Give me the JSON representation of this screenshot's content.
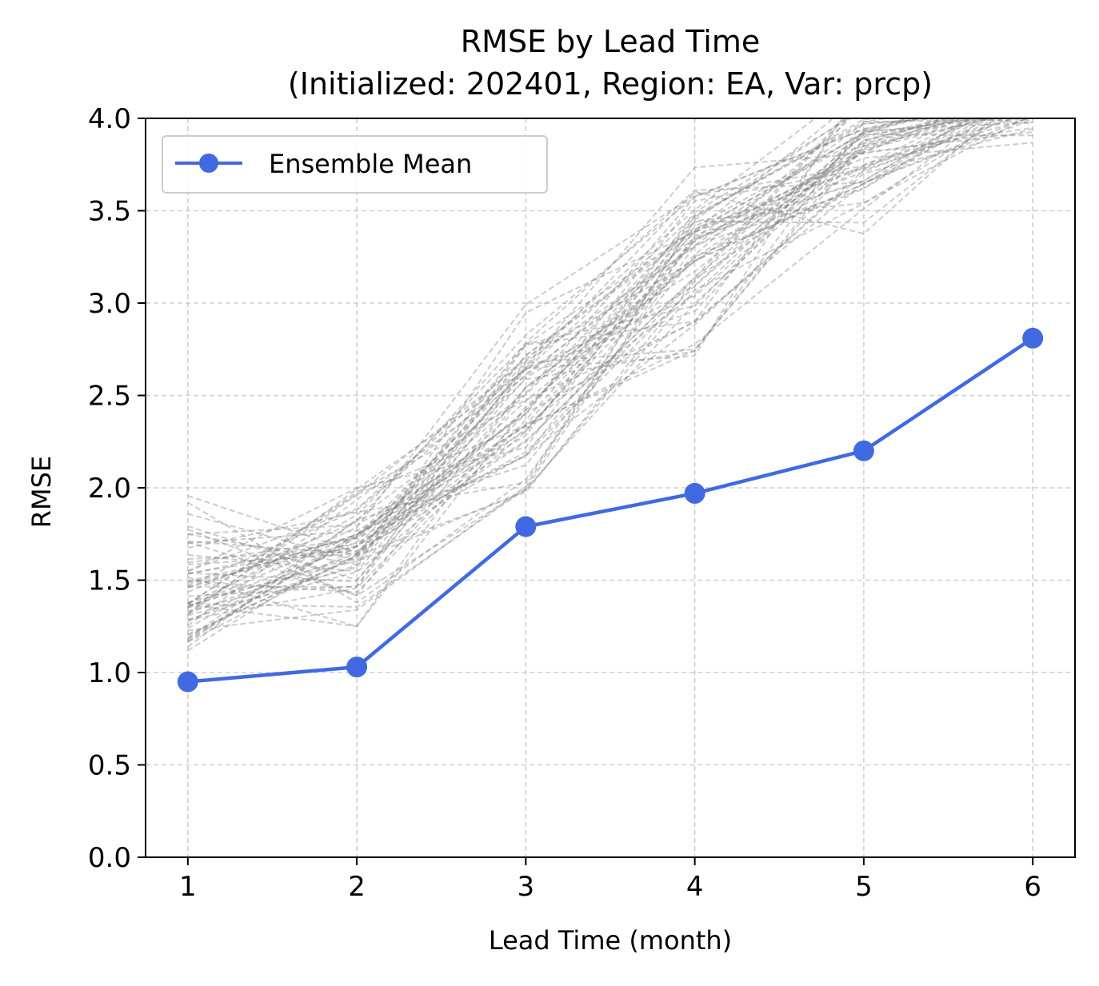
{
  "chart_data": {
    "type": "line",
    "title": "RMSE by Lead Time",
    "subtitle": "(Initialized: 202401, Region: EA, Var: prcp)",
    "xlabel": "Lead Time (month)",
    "ylabel": "RMSE",
    "x": [
      1,
      2,
      3,
      4,
      5,
      6
    ],
    "x_ticks": [
      "1",
      "2",
      "3",
      "4",
      "5",
      "6"
    ],
    "y_ticks": [
      "0.0",
      "0.5",
      "1.0",
      "1.5",
      "2.0",
      "2.5",
      "3.0",
      "3.5",
      "4.0"
    ],
    "xlim": [
      0.75,
      6.25
    ],
    "ylim": [
      0,
      4.0
    ],
    "grid": true,
    "legend_position": "upper-left",
    "series": [
      {
        "name": "Ensemble Mean",
        "color": "#4169e1",
        "marker": "circle",
        "values": [
          0.95,
          1.03,
          1.79,
          1.97,
          2.2,
          2.81
        ]
      }
    ],
    "members": {
      "color": "#808080",
      "style": "dashed",
      "count": 60,
      "typical_range": [
        [
          1.1,
          2.1
        ],
        [
          1.25,
          2.3
        ],
        [
          1.95,
          3.2
        ],
        [
          2.7,
          4.0
        ],
        [
          3.15,
          4.2
        ],
        [
          3.75,
          4.2
        ]
      ],
      "typical_center": [
        1.45,
        1.6,
        2.45,
        3.25,
        3.85,
        4.1
      ]
    }
  }
}
